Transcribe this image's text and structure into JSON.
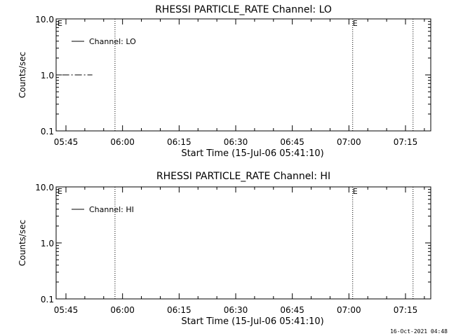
{
  "footer_timestamp": "16-Oct-2021 04:48",
  "chart_data": [
    {
      "type": "line",
      "title": "RHESSI PARTICLE_RATE Channel: LO",
      "xlabel": "Start Time (15-Jul-06 05:41:10)",
      "ylabel": "Counts/sec",
      "y_scale": "log",
      "ylim": [
        0.1,
        10.0
      ],
      "y_ticks": [
        "10.0",
        "1.0",
        "0.1"
      ],
      "x_ticks": [
        "05:45",
        "06:00",
        "06:15",
        "06:30",
        "06:45",
        "07:00",
        "07:15"
      ],
      "legend": {
        "placement": "top-left",
        "entries": [
          "Channel: LO"
        ]
      },
      "event_lines": [
        "05:58",
        "07:01",
        "07:17"
      ],
      "event_markers": [
        {
          "x": "05:41",
          "label": "E"
        },
        {
          "x": "07:01",
          "label": "E"
        }
      ],
      "series": [
        {
          "name": "Channel: LO",
          "x": [
            "05:44",
            "05:52"
          ],
          "values": [
            1.0,
            1.0
          ],
          "style": "dash-dot"
        }
      ],
      "grid": false
    },
    {
      "type": "line",
      "title": "RHESSI PARTICLE_RATE Channel: HI",
      "xlabel": "Start Time (15-Jul-06 05:41:10)",
      "ylabel": "Counts/sec",
      "y_scale": "log",
      "ylim": [
        0.1,
        10.0
      ],
      "y_ticks": [
        "10.0",
        "1.0",
        "0.1"
      ],
      "x_ticks": [
        "05:45",
        "06:00",
        "06:15",
        "06:30",
        "06:45",
        "07:00",
        "07:15"
      ],
      "legend": {
        "placement": "top-left",
        "entries": [
          "Channel: HI"
        ]
      },
      "event_lines": [
        "05:58",
        "07:01",
        "07:17"
      ],
      "event_markers": [
        {
          "x": "05:41",
          "label": "E"
        },
        {
          "x": "07:01",
          "label": "E"
        }
      ],
      "series": [],
      "grid": false
    }
  ]
}
